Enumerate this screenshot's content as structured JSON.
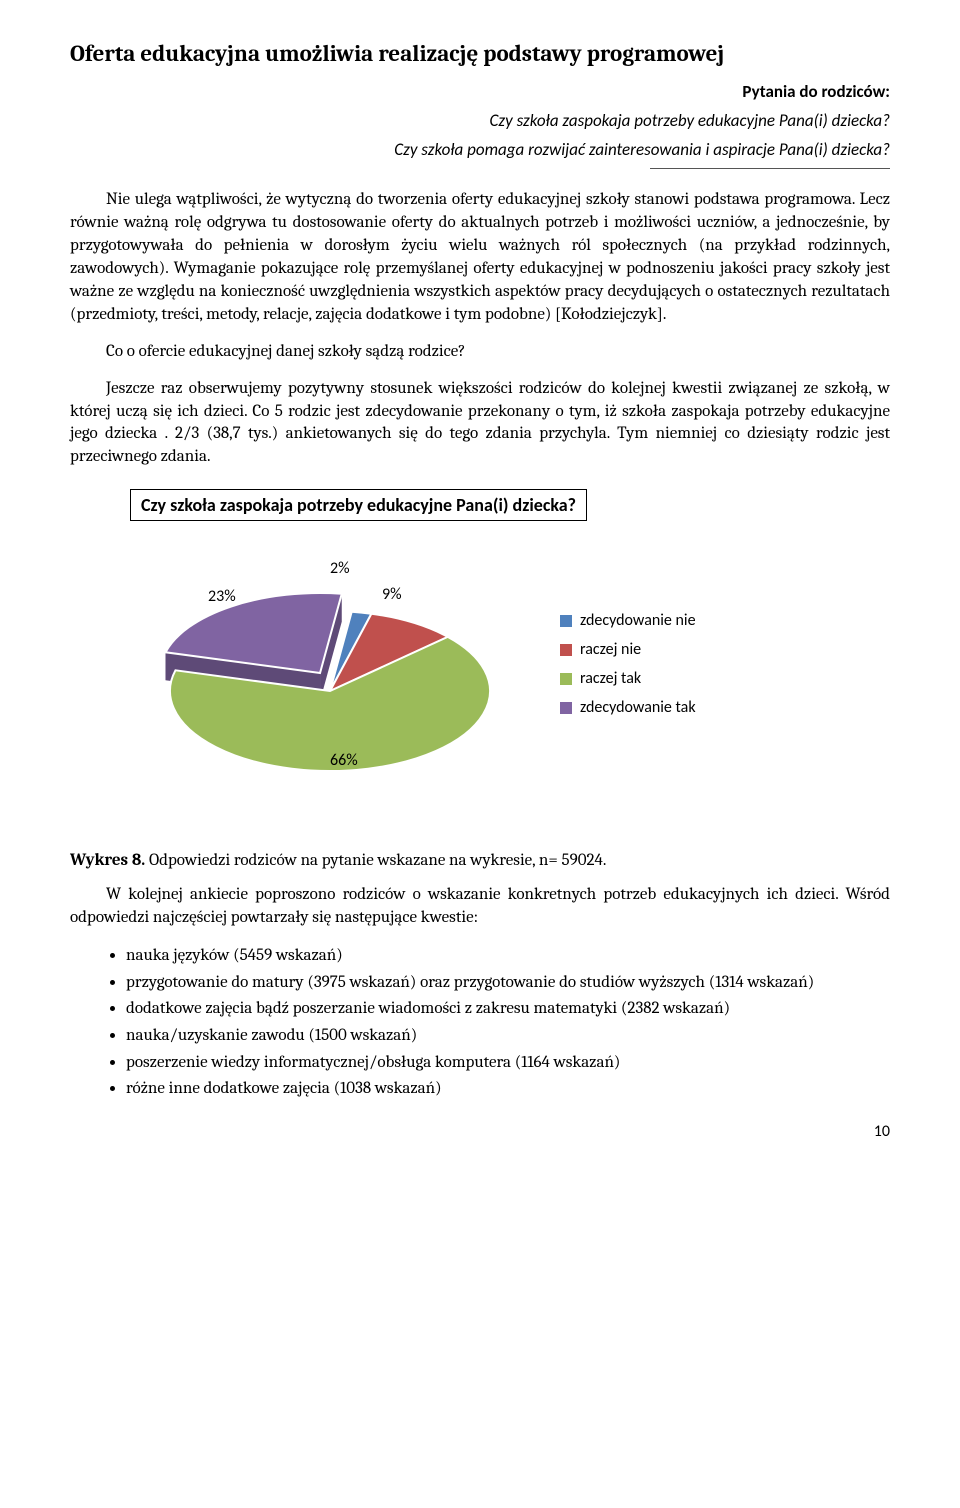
{
  "title": "Oferta edukacyjna umożliwia realizację podstawy programowej",
  "questions": {
    "header": "Pytania do rodziców:",
    "q1": "Czy szkoła zaspokaja potrzeby edukacyjne Pana(i) dziecka?",
    "q2": "Czy szkoła pomaga rozwijać zainteresowania i aspiracje Pana(i) dziecka?"
  },
  "para1": "Nie ulega wątpliwości, że wytyczną do tworzenia oferty edukacyjnej szkoły stanowi podstawa programowa. Lecz równie ważną rolę odgrywa tu dostosowanie oferty do aktualnych potrzeb i możliwości uczniów, a jednocześnie, by  przygotowywała do pełnienia w dorosłym życiu wielu ważnych ról społecznych (na przykład rodzinnych, zawodowych). Wymaganie pokazujące rolę przemyślanej oferty edukacyjnej w podnoszeniu jakości pracy szkoły jest ważne ze względu na konieczność uwzględnienia wszystkich aspektów pracy decydujących o ostatecznych rezultatach (przedmioty, treści, metody, relacje, zajęcia dodatkowe i tym podobne) [Kołodziejczyk].",
  "para2": "Co o ofercie edukacyjnej danej szkoły sądzą rodzice?",
  "para3": "Jeszcze raz obserwujemy pozytywny stosunek większości rodziców do kolejnej kwestii związanej ze szkołą, w której uczą się ich dzieci. Co 5 rodzic jest zdecydowanie przekonany o tym, iż szkoła zaspokaja potrzeby edukacyjne jego dziecka . 2/3 (38,7 tys.) ankietowanych się do tego zdania przychyla. Tym niemniej co dziesiąty rodzic jest przeciwnego zdania.",
  "chart": {
    "type": "pie-3d",
    "title": "Czy szkoła zaspokaja potrzeby edukacyjne Pana(i) dziecka?",
    "background_color": "#ffffff",
    "label_fontsize": 16,
    "slices": [
      {
        "label": "zdecydowanie nie",
        "value": 2,
        "display": "2%",
        "color": "#4f81bd",
        "side_color": "#3a5f8a"
      },
      {
        "label": "raczej nie",
        "value": 9,
        "display": "9%",
        "color": "#c0504d",
        "side_color": "#8e3b39"
      },
      {
        "label": "raczej tak",
        "value": 66,
        "display": "66%",
        "color": "#9bbb59",
        "side_color": "#728a42"
      },
      {
        "label": "zdecydowanie tak",
        "value": 23,
        "display": "23%",
        "color": "#8064a2",
        "side_color": "#5e4a77"
      }
    ],
    "legend_swatch_colors": [
      "#4f81bd",
      "#c0504d",
      "#9bbb59",
      "#8064a2"
    ]
  },
  "caption_bold": "Wykres 8.",
  "caption_rest": " Odpowiedzi rodziców na pytanie wskazane na wykresie, n= 59024.",
  "follow_para": "W kolejnej ankiecie poproszono rodziców o wskazanie konkretnych potrzeb edukacyjnych ich dzieci. Wśród odpowiedzi najczęściej powtarzały się następujące kwestie:",
  "bullets": [
    "nauka języków  (5459 wskazań)",
    "przygotowanie do matury (3975 wskazań) oraz przygotowanie do studiów wyższych (1314 wskazań)",
    "dodatkowe zajęcia bądź poszerzanie wiadomości z zakresu matematyki  (2382 wskazań)",
    "nauka/uzyskanie zawodu (1500 wskazań)",
    "poszerzenie wiedzy informatycznej/obsługa komputera (1164 wskazań)",
    "różne inne dodatkowe zajęcia (1038 wskazań)"
  ],
  "page_number": "10"
}
